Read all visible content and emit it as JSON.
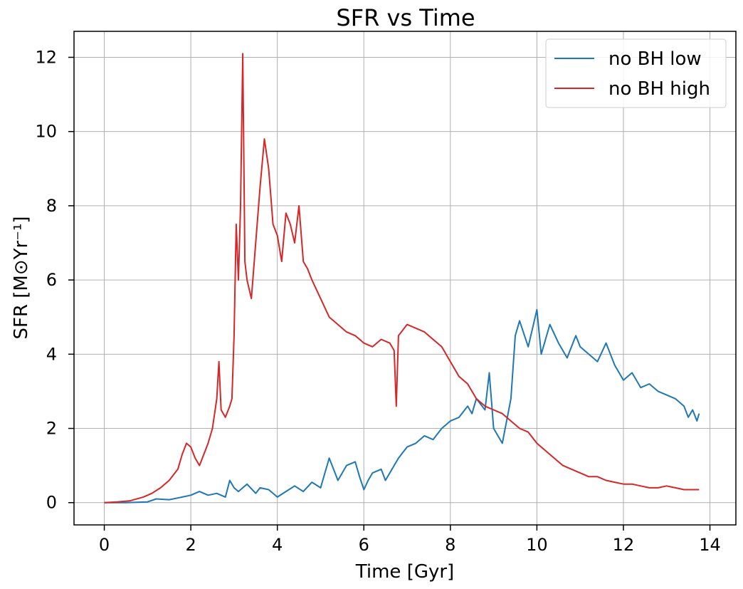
{
  "chart_data": {
    "type": "line",
    "title": "SFR vs Time",
    "xlabel": "Time [Gyr]",
    "ylabel": "SFR [M⊙Yr⁻¹]",
    "xlim": [
      -0.7,
      14.6
    ],
    "ylim": [
      -0.6,
      12.7
    ],
    "xticks": [
      0,
      2,
      4,
      6,
      8,
      10,
      12,
      14
    ],
    "yticks": [
      0,
      2,
      4,
      6,
      8,
      10,
      12
    ],
    "grid": true,
    "legend_position": "upper right",
    "series": [
      {
        "name": "no BH low",
        "color": "#1f77b4",
        "x": [
          0,
          0.5,
          1.0,
          1.2,
          1.5,
          1.8,
          2.0,
          2.2,
          2.4,
          2.6,
          2.8,
          2.9,
          3.0,
          3.1,
          3.3,
          3.5,
          3.6,
          3.8,
          4.0,
          4.2,
          4.4,
          4.6,
          4.8,
          5.0,
          5.1,
          5.2,
          5.3,
          5.4,
          5.6,
          5.8,
          5.9,
          6.0,
          6.1,
          6.2,
          6.4,
          6.5,
          6.7,
          6.8,
          7.0,
          7.2,
          7.4,
          7.6,
          7.8,
          8.0,
          8.2,
          8.4,
          8.5,
          8.6,
          8.8,
          8.9,
          9.0,
          9.2,
          9.4,
          9.5,
          9.6,
          9.8,
          10.0,
          10.1,
          10.3,
          10.5,
          10.7,
          10.9,
          11.0,
          11.2,
          11.4,
          11.6,
          11.8,
          12.0,
          12.2,
          12.4,
          12.6,
          12.8,
          13.0,
          13.2,
          13.4,
          13.5,
          13.6,
          13.7,
          13.75
        ],
        "values": [
          0,
          0,
          0.02,
          0.1,
          0.08,
          0.15,
          0.2,
          0.3,
          0.2,
          0.25,
          0.15,
          0.6,
          0.4,
          0.3,
          0.5,
          0.25,
          0.4,
          0.35,
          0.15,
          0.3,
          0.45,
          0.3,
          0.55,
          0.4,
          0.8,
          1.2,
          0.9,
          0.6,
          1.0,
          1.1,
          0.7,
          0.35,
          0.6,
          0.8,
          0.9,
          0.6,
          1.0,
          1.2,
          1.5,
          1.6,
          1.8,
          1.7,
          2.0,
          2.2,
          2.3,
          2.6,
          2.4,
          2.8,
          2.5,
          3.5,
          2.0,
          1.6,
          2.8,
          4.5,
          4.9,
          4.2,
          5.2,
          4.0,
          4.8,
          4.3,
          3.9,
          4.5,
          4.2,
          4.0,
          3.8,
          4.3,
          3.7,
          3.3,
          3.5,
          3.1,
          3.2,
          3.0,
          2.9,
          2.8,
          2.6,
          2.3,
          2.5,
          2.2,
          2.4
        ]
      },
      {
        "name": "no BH high",
        "color": "#d62728",
        "x": [
          0,
          0.3,
          0.6,
          0.9,
          1.1,
          1.3,
          1.5,
          1.7,
          1.8,
          1.9,
          2.0,
          2.1,
          2.2,
          2.3,
          2.4,
          2.5,
          2.6,
          2.65,
          2.7,
          2.8,
          2.9,
          2.95,
          3.0,
          3.05,
          3.1,
          3.15,
          3.2,
          3.25,
          3.3,
          3.4,
          3.5,
          3.6,
          3.7,
          3.8,
          3.9,
          4.0,
          4.1,
          4.2,
          4.3,
          4.4,
          4.5,
          4.6,
          4.7,
          4.8,
          5.0,
          5.2,
          5.4,
          5.6,
          5.8,
          6.0,
          6.2,
          6.4,
          6.6,
          6.7,
          6.75,
          6.8,
          7.0,
          7.2,
          7.4,
          7.6,
          7.8,
          8.0,
          8.2,
          8.4,
          8.6,
          8.8,
          9.0,
          9.2,
          9.4,
          9.6,
          9.8,
          10.0,
          10.2,
          10.4,
          10.6,
          10.8,
          11.0,
          11.2,
          11.4,
          11.6,
          11.8,
          12.0,
          12.2,
          12.4,
          12.6,
          12.8,
          13.0,
          13.2,
          13.4,
          13.6,
          13.75
        ],
        "values": [
          0,
          0.02,
          0.05,
          0.15,
          0.25,
          0.4,
          0.6,
          0.9,
          1.3,
          1.6,
          1.5,
          1.2,
          1.0,
          1.3,
          1.6,
          2.0,
          2.8,
          3.8,
          2.5,
          2.3,
          2.6,
          2.8,
          4.5,
          7.5,
          6.0,
          8.0,
          12.1,
          6.5,
          6.0,
          5.5,
          7.0,
          8.5,
          9.8,
          9.0,
          7.5,
          7.2,
          6.5,
          7.8,
          7.5,
          7.0,
          8.0,
          6.5,
          6.3,
          6.0,
          5.5,
          5.0,
          4.8,
          4.6,
          4.5,
          4.3,
          4.2,
          4.4,
          4.3,
          4.1,
          2.6,
          4.5,
          4.8,
          4.7,
          4.6,
          4.4,
          4.2,
          3.8,
          3.4,
          3.2,
          2.8,
          2.6,
          2.5,
          2.4,
          2.2,
          2.0,
          1.9,
          1.6,
          1.4,
          1.2,
          1.0,
          0.9,
          0.8,
          0.7,
          0.7,
          0.6,
          0.55,
          0.5,
          0.5,
          0.45,
          0.4,
          0.4,
          0.45,
          0.4,
          0.35,
          0.35,
          0.35
        ]
      }
    ]
  }
}
